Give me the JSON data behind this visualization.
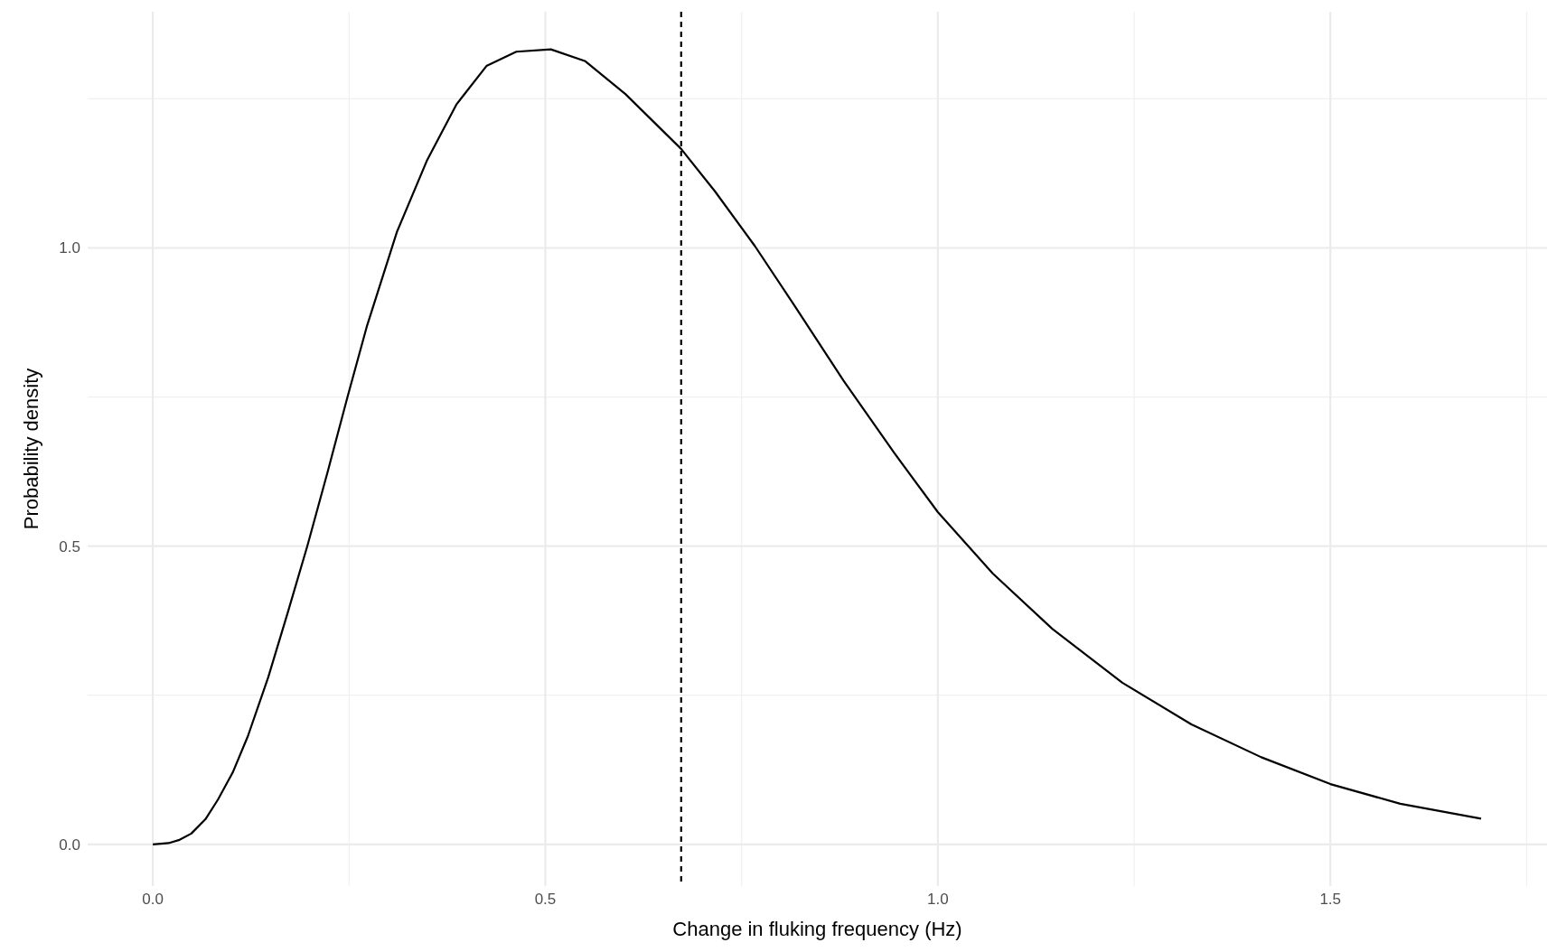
{
  "chart_data": {
    "type": "line",
    "xlabel": "Change in fluking frequency (Hz)",
    "ylabel": "Probability density",
    "x": [
      0,
      0.02,
      0.033,
      0.049,
      0.067,
      0.083,
      0.102,
      0.121,
      0.147,
      0.172,
      0.197,
      0.223,
      0.248,
      0.273,
      0.311,
      0.349,
      0.387,
      0.425,
      0.463,
      0.507,
      0.551,
      0.602,
      0.673,
      0.716,
      0.767,
      0.817,
      0.88,
      0.944,
      1.0,
      1.07,
      1.146,
      1.235,
      1.323,
      1.412,
      1.5,
      1.589,
      1.692
    ],
    "series": [
      {
        "color": "#000000",
        "values": [
          0,
          0.002,
          0.007,
          0.018,
          0.042,
          0.075,
          0.121,
          0.181,
          0.28,
          0.389,
          0.501,
          0.626,
          0.75,
          0.87,
          1.027,
          1.146,
          1.241,
          1.305,
          1.329,
          1.333,
          1.313,
          1.258,
          1.166,
          1.095,
          1.003,
          0.904,
          0.777,
          0.657,
          0.557,
          0.454,
          0.361,
          0.271,
          0.201,
          0.146,
          0.101,
          0.068,
          0.043
        ]
      }
    ],
    "xlim": [
      -0.083,
      1.776
    ],
    "ylim": [
      -0.07,
      1.396
    ],
    "xticks": [
      {
        "value": 0,
        "label": "0.0"
      },
      0.5,
      {
        "value": 1,
        "label": "1.0"
      },
      1.5
    ],
    "yticks": [
      {
        "value": 0,
        "label": "0.0"
      },
      0.5,
      {
        "value": 1,
        "label": "1.0"
      }
    ],
    "grid": true,
    "ref_lines": [
      {
        "axis": "x",
        "value": 0.673,
        "line_style": "dashed",
        "color": "#000000"
      }
    ]
  }
}
